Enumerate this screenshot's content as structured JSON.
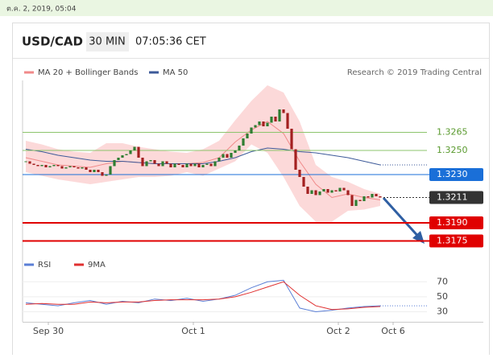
{
  "timestamp": "ต.ค. 2, 2019, 05:04",
  "header": {
    "pair": "USD/CAD",
    "interval": "30 MIN",
    "time": "07:05:36 CET"
  },
  "credit": "Research © 2019 Trading Central",
  "chart_data": {
    "type": "candlestick",
    "up_color": "#2f7d32",
    "down_color": "#a32020",
    "close": [
      1.3241,
      1.3239,
      1.3238,
      1.3237,
      1.3238,
      1.3236,
      1.3237,
      1.3238,
      1.3237,
      1.3235,
      1.3236,
      1.3237,
      1.3236,
      1.3235,
      1.3236,
      1.3234,
      1.3232,
      1.3234,
      1.3232,
      1.3229,
      1.323,
      1.3237,
      1.3242,
      1.3244,
      1.3246,
      1.3247,
      1.325,
      1.3253,
      1.3244,
      1.3237,
      1.3241,
      1.3242,
      1.3239,
      1.3237,
      1.3241,
      1.3239,
      1.3236,
      1.3239,
      1.3238,
      1.3236,
      1.3239,
      1.3237,
      1.3239,
      1.3236,
      1.3238,
      1.3239,
      1.3237,
      1.3241,
      1.3244,
      1.3247,
      1.3244,
      1.3248,
      1.325,
      1.3254,
      1.326,
      1.3264,
      1.3269,
      1.3271,
      1.3274,
      1.327,
      1.3273,
      1.3278,
      1.3274,
      1.3284,
      1.3281,
      1.3268,
      1.3251,
      1.3234,
      1.3228,
      1.322,
      1.3214,
      1.3217,
      1.3213,
      1.3216,
      1.3218,
      1.3215,
      1.3217,
      1.3216,
      1.3219,
      1.3217,
      1.3213,
      1.3204,
      1.3209,
      1.3208,
      1.3212,
      1.3211,
      1.3214,
      1.3212,
      1.3211
    ],
    "xlim": [
      -1,
      113
    ],
    "xticks": [
      {
        "value": 5.6,
        "label": "Sep 30"
      },
      {
        "value": 41.6,
        "label": "Oct 1"
      },
      {
        "value": 77.6,
        "label": "Oct 2"
      },
      {
        "value": 91.2,
        "label": "Oct 6"
      }
    ],
    "ylim": [
      1.3168,
      1.3308
    ],
    "overlays": {
      "x": [
        0,
        4,
        8,
        12,
        16,
        20,
        24,
        28,
        32,
        36,
        40,
        44,
        48,
        52,
        56,
        60,
        64,
        68,
        72,
        76,
        80,
        84,
        88
      ],
      "bands": {
        "name": "MA 20 + Bollinger Bands",
        "color": "#f08a8a",
        "fill": "#fcd9d9",
        "upper": [
          1.3258,
          1.3255,
          1.3251,
          1.3249,
          1.3248,
          1.3256,
          1.3256,
          1.3253,
          1.3251,
          1.3249,
          1.3248,
          1.3251,
          1.3258,
          1.3275,
          1.3291,
          1.3304,
          1.3298,
          1.3274,
          1.3238,
          1.3228,
          1.3224,
          1.3218,
          1.3214
        ],
        "lower": [
          1.3232,
          1.3229,
          1.3226,
          1.3224,
          1.3222,
          1.3224,
          1.3226,
          1.3228,
          1.3228,
          1.3229,
          1.3232,
          1.3229,
          1.3235,
          1.3241,
          1.3255,
          1.3248,
          1.3228,
          1.3204,
          1.3191,
          1.3191,
          1.32,
          1.3201,
          1.3204
        ],
        "mid": [
          1.3244,
          1.3241,
          1.3238,
          1.3237,
          1.3236,
          1.3239,
          1.3241,
          1.324,
          1.3239,
          1.3239,
          1.3239,
          1.324,
          1.3244,
          1.3257,
          1.3267,
          1.3274,
          1.3264,
          1.3241,
          1.3222,
          1.3211,
          1.3214,
          1.3211,
          1.3209
        ]
      },
      "ma50": {
        "name": "MA 50",
        "color": "#3d5a99",
        "values": [
          1.3251,
          1.3249,
          1.3246,
          1.3244,
          1.3242,
          1.3241,
          1.3241,
          1.324,
          1.3239,
          1.3239,
          1.3239,
          1.3239,
          1.3241,
          1.3244,
          1.3249,
          1.3252,
          1.3251,
          1.3249,
          1.3248,
          1.3246,
          1.3244,
          1.3241,
          1.3238
        ]
      }
    },
    "levels": [
      {
        "value": 1.3265,
        "label": "1.3265",
        "color": "#8cc46c",
        "text_color": "#5a9a2f",
        "box": false,
        "width": 1
      },
      {
        "value": 1.325,
        "label": "1.3250",
        "color": "#8cc46c",
        "text_color": "#5a9a2f",
        "box": false,
        "width": 1
      },
      {
        "value": 1.323,
        "label": "1.3230",
        "color": "#1a6fd8",
        "text_color": "#ffffff",
        "box": true,
        "width": 1
      },
      {
        "value": 1.3211,
        "label": "1.3211",
        "color": "#333333",
        "text_color": "#ffffff",
        "box": true,
        "width": 1,
        "dashed": true
      },
      {
        "value": 1.319,
        "label": "1.3190",
        "color": "#e00000",
        "text_color": "#ffffff",
        "box": true,
        "width": 2
      },
      {
        "value": 1.3175,
        "label": "1.3175",
        "color": "#e00000",
        "text_color": "#ffffff",
        "box": true,
        "width": 2
      }
    ],
    "rsi": {
      "ylim": [
        22,
        81
      ],
      "yticks": [
        70,
        50,
        30
      ],
      "series": [
        {
          "name": "RSI",
          "color": "#5b7fd6",
          "values": [
            42,
            40,
            38,
            42,
            45,
            40,
            44,
            42,
            47,
            45,
            48,
            44,
            47,
            52,
            62,
            70,
            72,
            35,
            30,
            32,
            35,
            37,
            38
          ]
        },
        {
          "name": "9MA",
          "color": "#e03030",
          "values": [
            40,
            41,
            40,
            40,
            43,
            42,
            43,
            43,
            45,
            46,
            46,
            46,
            47,
            50,
            56,
            63,
            70,
            52,
            38,
            33,
            34,
            36,
            37
          ]
        }
      ]
    }
  }
}
